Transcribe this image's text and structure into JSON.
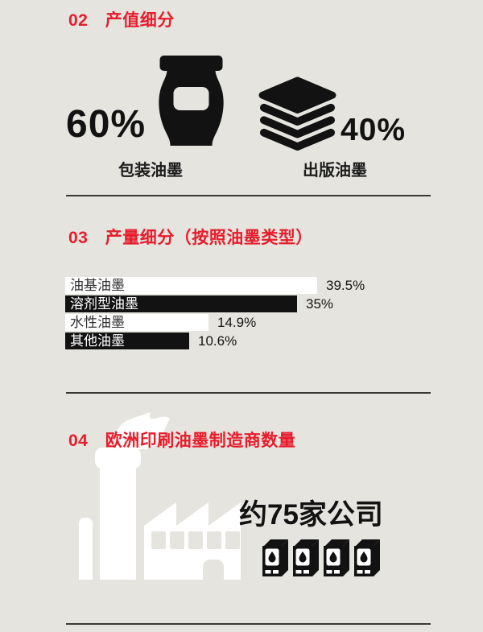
{
  "colors": {
    "background": "#e5e4df",
    "accent_red": "#e81c2b",
    "ink_black": "#121212",
    "bar_white": "#ffffff",
    "icon_white": "#ffffff",
    "divider": "#3a3a35"
  },
  "section_output_value": {
    "number": "02",
    "title": "产值细分",
    "packaging": {
      "value": "60%",
      "label": "包装油墨",
      "icon": "ink-jar-icon"
    },
    "publication": {
      "value": "40%",
      "label": "出版油墨",
      "icon": "paper-stack-icon"
    }
  },
  "section_production": {
    "number": "03",
    "title": "产量细分（按照油墨类型）"
  },
  "chart_data": {
    "type": "bar",
    "orientation": "horizontal",
    "title": "产量细分（按照油墨类型）",
    "categories": [
      "油基油墨",
      "溶剂型油墨",
      "水性油墨",
      "其他油墨"
    ],
    "values": [
      39.5,
      35,
      14.9,
      10.6
    ],
    "value_labels": [
      "39.5%",
      "35%",
      "14.9%",
      "10.6%"
    ],
    "unit": "%",
    "bar_fills": [
      "#ffffff",
      "#121212",
      "#ffffff",
      "#121212"
    ],
    "bar_text_colors": [
      "#2f2f2f",
      "#ffffff",
      "#2f2f2f",
      "#ffffff"
    ],
    "xlim": [
      0,
      43
    ],
    "grid": false,
    "legend": false
  },
  "section_manufacturers": {
    "number": "04",
    "title": "欧洲印刷油墨制造商数量",
    "count_text": "约75家公司",
    "cartridge_count": 4,
    "icons": [
      "factory-icon",
      "ink-cartridge-icon"
    ]
  }
}
